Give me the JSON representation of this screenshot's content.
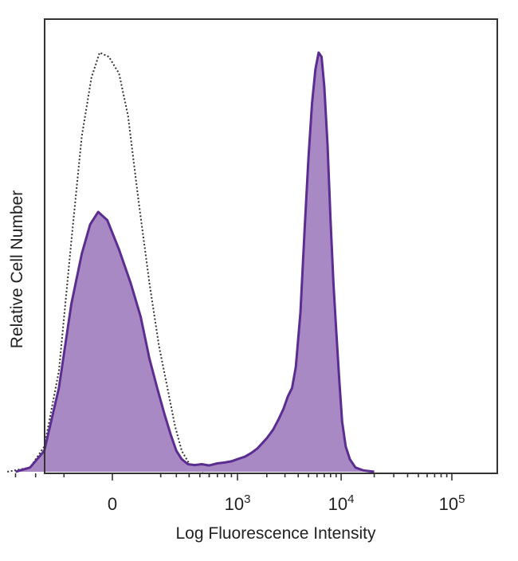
{
  "chart_data": {
    "type": "area",
    "xlabel": "Log Fluorescence Intensity",
    "ylabel": "Relative Cell Number",
    "x_scale": "biexponential",
    "xlim": [
      -800,
      200000
    ],
    "ylim": [
      0,
      100
    ],
    "grid": false,
    "legend": "none",
    "x_ticks": [
      {
        "value": 0,
        "base": "0",
        "exp": ""
      },
      {
        "value": 1000,
        "base": "10",
        "exp": "3"
      },
      {
        "value": 10000,
        "base": "10",
        "exp": "4"
      },
      {
        "value": 100000,
        "base": "10",
        "exp": "5"
      }
    ],
    "series": [
      {
        "style": "dotted-outline",
        "color": "#333333",
        "points": [
          [
            -700,
            0
          ],
          [
            -450,
            1
          ],
          [
            -330,
            6
          ],
          [
            -230,
            24
          ],
          [
            -160,
            55
          ],
          [
            -110,
            80
          ],
          [
            -70,
            94
          ],
          [
            -40,
            100
          ],
          [
            -10,
            99
          ],
          [
            20,
            95
          ],
          [
            50,
            85
          ],
          [
            90,
            65
          ],
          [
            140,
            45
          ],
          [
            190,
            30
          ],
          [
            240,
            20
          ],
          [
            290,
            11
          ],
          [
            340,
            5
          ],
          [
            400,
            2
          ],
          [
            470,
            0.5
          ],
          [
            550,
            0
          ]
        ]
      },
      {
        "style": "filled",
        "color": "#5b2d91",
        "fill": "#a989c4",
        "points": [
          [
            -600,
            0
          ],
          [
            -450,
            1
          ],
          [
            -330,
            5
          ],
          [
            -230,
            20
          ],
          [
            -160,
            40
          ],
          [
            -110,
            52
          ],
          [
            -75,
            59
          ],
          [
            -45,
            62
          ],
          [
            -15,
            60
          ],
          [
            20,
            53
          ],
          [
            60,
            45
          ],
          [
            100,
            37
          ],
          [
            140,
            27
          ],
          [
            180,
            20
          ],
          [
            220,
            14
          ],
          [
            260,
            9
          ],
          [
            300,
            5
          ],
          [
            340,
            3
          ],
          [
            390,
            1.8
          ],
          [
            450,
            1.6
          ],
          [
            520,
            1.8
          ],
          [
            600,
            1.5
          ],
          [
            700,
            2
          ],
          [
            800,
            2.2
          ],
          [
            900,
            2.5
          ],
          [
            1000,
            3
          ],
          [
            1200,
            3.6
          ],
          [
            1400,
            4.5
          ],
          [
            1600,
            5.5
          ],
          [
            1800,
            6.8
          ],
          [
            2000,
            8
          ],
          [
            2300,
            10
          ],
          [
            2600,
            12.5
          ],
          [
            2900,
            15
          ],
          [
            3200,
            18
          ],
          [
            3500,
            20
          ],
          [
            3800,
            25
          ],
          [
            4200,
            38
          ],
          [
            4600,
            58
          ],
          [
            5000,
            75
          ],
          [
            5400,
            88
          ],
          [
            5800,
            96
          ],
          [
            6200,
            100
          ],
          [
            6600,
            99
          ],
          [
            7000,
            92
          ],
          [
            7500,
            78
          ],
          [
            8000,
            60
          ],
          [
            8500,
            45
          ],
          [
            9000,
            34
          ],
          [
            9600,
            22
          ],
          [
            10200,
            12
          ],
          [
            11000,
            6
          ],
          [
            12000,
            3
          ],
          [
            13500,
            1
          ],
          [
            16000,
            0.3
          ],
          [
            20000,
            0
          ]
        ]
      }
    ]
  }
}
